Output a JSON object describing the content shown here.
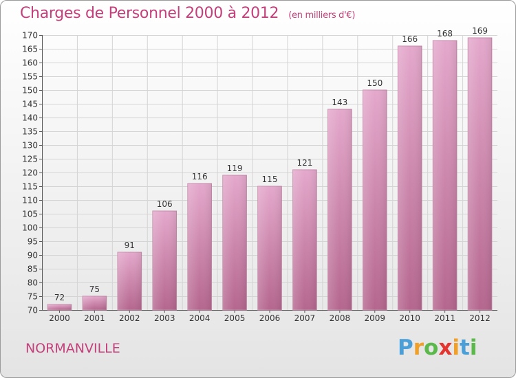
{
  "chart_data": {
    "type": "bar",
    "title": "Charges de Personnel 2000 à 2012",
    "subtitle": "(en milliers d'€)",
    "categories": [
      "2000",
      "2001",
      "2002",
      "2003",
      "2004",
      "2005",
      "2006",
      "2007",
      "2008",
      "2009",
      "2010",
      "2011",
      "2012"
    ],
    "values": [
      72,
      75,
      91,
      106,
      116,
      119,
      115,
      121,
      143,
      150,
      166,
      168,
      169
    ],
    "ylim": [
      70,
      170
    ],
    "yticks": [
      70,
      75,
      80,
      85,
      90,
      95,
      100,
      105,
      110,
      115,
      120,
      125,
      130,
      135,
      140,
      145,
      150,
      155,
      160,
      165,
      170
    ],
    "xlabel": "",
    "ylabel": "",
    "grid": true,
    "bar_color": "#d68ab4"
  },
  "footer": {
    "commune": "NORMANVILLE",
    "logo": {
      "text": "Proxiti",
      "letters": [
        "P",
        "r",
        "o",
        "x",
        "i",
        "t",
        "i"
      ]
    }
  },
  "colors": {
    "accent": "#c3407b",
    "bar_top": "#e4a8cc",
    "bar_bottom": "#b5668e",
    "grid": "#d4d4d4"
  }
}
